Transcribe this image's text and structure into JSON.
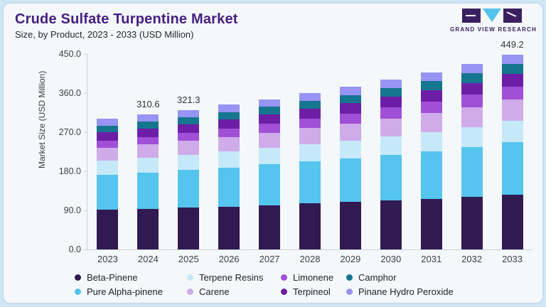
{
  "header": {
    "title": "Crude Sulfate Turpentine Market",
    "subtitle": "Size, by Product, 2023 - 2033 (USD Million)"
  },
  "logo": {
    "text": "GRAND VIEW RESEARCH"
  },
  "chart_data": {
    "type": "bar",
    "stacked": true,
    "title": "Crude Sulfate Turpentine Market Size, by Product, 2023 - 2033 (USD Million)",
    "xlabel": "",
    "ylabel": "Market Size (USD Million)",
    "ylim": [
      0,
      450
    ],
    "yticks": [
      450.0,
      360.0,
      270.0,
      180.0,
      90.0,
      0.0
    ],
    "grid": false,
    "legend_position": "bottom",
    "categories": [
      "2023",
      "2024",
      "2025",
      "2026",
      "2027",
      "2028",
      "2029",
      "2030",
      "2031",
      "2032",
      "2033"
    ],
    "total_labels": [
      "",
      "310.6",
      "321.3",
      "",
      "",
      "",
      "",
      "",
      "",
      "",
      "449.2"
    ],
    "series": [
      {
        "name": "Beta-Pinene",
        "color": "#311a52",
        "values": [
          91.1,
          93.5,
          96.0,
          99.0,
          102.2,
          105.6,
          109.2,
          113.0,
          117.0,
          121.3,
          125.9
        ]
      },
      {
        "name": "Pure Alpha-pinene",
        "color": "#55c4ef",
        "values": [
          81.2,
          84.0,
          86.9,
          90.0,
          93.4,
          97.0,
          100.9,
          105.0,
          109.4,
          114.0,
          120.8
        ]
      },
      {
        "name": "Terpene Resins",
        "color": "#c6e9fa",
        "values": [
          32.8,
          33.9,
          35.0,
          36.3,
          37.7,
          39.2,
          40.8,
          42.5,
          44.4,
          46.5,
          48.9
        ]
      },
      {
        "name": "Carene",
        "color": "#cfabe9",
        "values": [
          29.4,
          30.7,
          32.2,
          33.8,
          35.5,
          37.3,
          39.2,
          41.3,
          43.6,
          46.2,
          49.0
        ]
      },
      {
        "name": "Limonene",
        "color": "#a24fd8",
        "values": [
          16.1,
          17.0,
          18.1,
          19.2,
          20.4,
          21.7,
          23.1,
          24.7,
          26.5,
          28.5,
          30.7
        ]
      },
      {
        "name": "Terpineol",
        "color": "#6d1ea6",
        "values": [
          19.0,
          19.6,
          20.3,
          21.1,
          21.9,
          22.8,
          23.7,
          24.7,
          25.8,
          27.1,
          28.5
        ]
      },
      {
        "name": "Camphor",
        "color": "#15768f",
        "values": [
          15.6,
          16.0,
          16.5,
          17.0,
          17.6,
          18.2,
          18.9,
          19.7,
          20.6,
          21.6,
          22.7
        ]
      },
      {
        "name": "Pinane Hydro Peroxide",
        "color": "#9794f3",
        "values": [
          15.6,
          15.9,
          16.3,
          16.8,
          17.2,
          17.8,
          18.5,
          19.5,
          20.6,
          22.2,
          22.7
        ]
      }
    ]
  }
}
